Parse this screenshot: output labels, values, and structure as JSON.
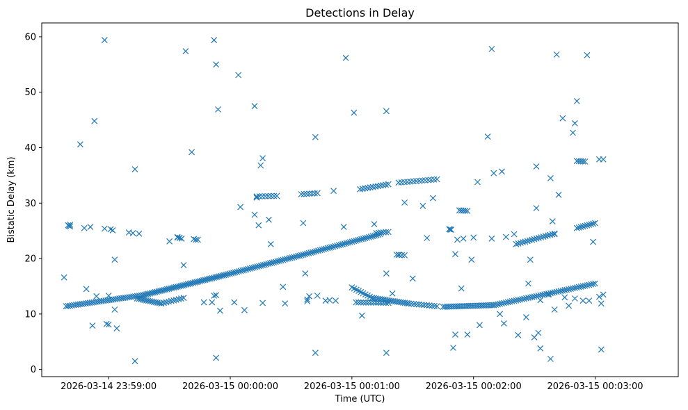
{
  "chart_data": {
    "type": "scatter",
    "title": "Detections in Delay",
    "xlabel": "Time (UTC)",
    "ylabel": "Bistatic Delay (km)",
    "x_ticks": [
      {
        "value": "2026-03-14 23:59:00",
        "label": "2026-03-14 23:59:00"
      },
      {
        "value": "2026-03-15 00:00:00",
        "label": "2026-03-15 00:00:00"
      },
      {
        "value": "2026-03-15 00:01:00",
        "label": "2026-03-15 00:01:00"
      },
      {
        "value": "2026-03-15 00:02:00",
        "label": "2026-03-15 00:02:00"
      },
      {
        "value": "2026-03-15 00:03:00",
        "label": "2026-03-15 00:03:00"
      }
    ],
    "y_ticks": [
      0,
      10,
      20,
      30,
      40,
      50,
      60
    ],
    "xlim": [
      "2026-03-14 23:58:27",
      "2026-03-15 00:03:41"
    ],
    "ylim": [
      -1.3,
      62.5
    ],
    "grid": false,
    "legend": "none",
    "marker": "x",
    "color": "#1f77b4",
    "series": [
      {
        "points": [
          [
            "2026-03-14 23:58:38",
            16.6
          ],
          [
            "2026-03-14 23:58:41",
            26.1
          ],
          [
            "2026-03-14 23:58:46",
            40.6
          ],
          [
            "2026-03-14 23:58:48",
            25.5
          ],
          [
            "2026-03-14 23:58:49",
            14.5
          ],
          [
            "2026-03-14 23:58:51",
            25.7
          ],
          [
            "2026-03-14 23:58:52",
            7.9
          ],
          [
            "2026-03-14 23:58:53",
            44.8
          ],
          [
            "2026-03-14 23:58:54",
            13.2
          ],
          [
            "2026-03-14 23:58:58",
            59.4
          ],
          [
            "2026-03-14 23:58:58",
            25.4
          ],
          [
            "2026-03-14 23:58:59",
            8.2
          ],
          [
            "2026-03-14 23:59:00",
            8.1
          ],
          [
            "2026-03-14 23:59:00",
            13.3
          ],
          [
            "2026-03-14 23:59:01",
            25.3
          ],
          [
            "2026-03-14 23:59:02",
            25.1
          ],
          [
            "2026-03-14 23:59:03",
            19.8
          ],
          [
            "2026-03-14 23:59:03",
            10.8
          ],
          [
            "2026-03-14 23:59:04",
            7.4
          ],
          [
            "2026-03-14 23:59:10",
            24.7
          ],
          [
            "2026-03-14 23:59:12",
            24.6
          ],
          [
            "2026-03-14 23:59:13",
            36.1
          ],
          [
            "2026-03-14 23:59:13",
            1.5
          ],
          [
            "2026-03-14 23:59:15",
            24.5
          ],
          [
            "2026-03-14 23:59:30",
            23.1
          ],
          [
            "2026-03-14 23:59:34",
            23.8
          ],
          [
            "2026-03-14 23:59:35",
            23.7
          ],
          [
            "2026-03-14 23:59:37",
            18.8
          ],
          [
            "2026-03-14 23:59:38",
            57.4
          ],
          [
            "2026-03-14 23:59:41",
            39.2
          ],
          [
            "2026-03-14 23:59:42",
            23.5
          ],
          [
            "2026-03-14 23:59:43",
            23.4
          ],
          [
            "2026-03-14 23:59:44",
            23.4
          ],
          [
            "2026-03-14 23:59:47",
            12.1
          ],
          [
            "2026-03-14 23:59:51",
            12.1
          ],
          [
            "2026-03-14 23:59:52",
            59.4
          ],
          [
            "2026-03-14 23:59:53",
            55.0
          ],
          [
            "2026-03-14 23:59:52",
            13.3
          ],
          [
            "2026-03-14 23:59:53",
            13.4
          ],
          [
            "2026-03-14 23:59:53",
            2.1
          ],
          [
            "2026-03-14 23:59:54",
            46.9
          ],
          [
            "2026-03-14 23:59:55",
            10.6
          ],
          [
            "2026-03-15 00:00:04",
            53.1
          ],
          [
            "2026-03-15 00:00:02",
            12.1
          ],
          [
            "2026-03-15 00:00:05",
            29.3
          ],
          [
            "2026-03-15 00:00:07",
            10.7
          ],
          [
            "2026-03-15 00:00:12",
            47.5
          ],
          [
            "2026-03-15 00:00:12",
            27.9
          ],
          [
            "2026-03-15 00:00:13",
            31.0
          ],
          [
            "2026-03-15 00:00:14",
            26.0
          ],
          [
            "2026-03-15 00:00:15",
            36.8
          ],
          [
            "2026-03-15 00:00:16",
            38.1
          ],
          [
            "2026-03-15 00:00:16",
            12.0
          ],
          [
            "2026-03-15 00:00:19",
            27.0
          ],
          [
            "2026-03-15 00:00:20",
            22.6
          ],
          [
            "2026-03-15 00:00:26",
            14.9
          ],
          [
            "2026-03-15 00:00:27",
            11.9
          ],
          [
            "2026-03-15 00:00:36",
            26.4
          ],
          [
            "2026-03-15 00:00:37",
            17.3
          ],
          [
            "2026-03-15 00:00:38",
            12.3
          ],
          [
            "2026-03-15 00:00:38",
            12.6
          ],
          [
            "2026-03-15 00:00:39",
            13.2
          ],
          [
            "2026-03-15 00:00:42",
            41.9
          ],
          [
            "2026-03-15 00:00:42",
            3.0
          ],
          [
            "2026-03-15 00:00:43",
            13.3
          ],
          [
            "2026-03-15 00:00:47",
            12.4
          ],
          [
            "2026-03-15 00:00:49",
            12.5
          ],
          [
            "2026-03-15 00:00:51",
            32.2
          ],
          [
            "2026-03-15 00:00:52",
            12.4
          ],
          [
            "2026-03-15 00:00:56",
            25.7
          ],
          [
            "2026-03-15 00:00:57",
            56.2
          ],
          [
            "2026-03-15 00:01:01",
            46.3
          ],
          [
            "2026-03-15 00:01:05",
            9.7
          ],
          [
            "2026-03-15 00:01:11",
            26.2
          ],
          [
            "2026-03-15 00:01:17",
            46.6
          ],
          [
            "2026-03-15 00:01:17",
            17.3
          ],
          [
            "2026-03-15 00:01:17",
            3.0
          ],
          [
            "2026-03-15 00:01:20",
            13.7
          ],
          [
            "2026-03-15 00:01:23",
            20.7
          ],
          [
            "2026-03-15 00:01:26",
            30.1
          ],
          [
            "2026-03-15 00:01:30",
            16.4
          ],
          [
            "2026-03-15 00:01:35",
            29.5
          ],
          [
            "2026-03-15 00:01:37",
            23.7
          ],
          [
            "2026-03-15 00:01:40",
            30.9
          ],
          [
            "2026-03-15 00:01:50",
            3.9
          ],
          [
            "2026-03-15 00:01:51",
            20.8
          ],
          [
            "2026-03-15 00:01:51",
            6.3
          ],
          [
            "2026-03-15 00:01:52",
            23.4
          ],
          [
            "2026-03-15 00:01:54",
            14.6
          ],
          [
            "2026-03-15 00:01:55",
            23.6
          ],
          [
            "2026-03-15 00:01:57",
            6.3
          ],
          [
            "2026-03-15 00:01:59",
            19.8
          ],
          [
            "2026-03-15 00:02:00",
            23.8
          ],
          [
            "2026-03-15 00:02:02",
            33.8
          ],
          [
            "2026-03-15 00:02:03",
            8.0
          ],
          [
            "2026-03-15 00:02:07",
            42.0
          ],
          [
            "2026-03-15 00:02:09",
            57.8
          ],
          [
            "2026-03-15 00:02:09",
            23.6
          ],
          [
            "2026-03-15 00:02:10",
            35.4
          ],
          [
            "2026-03-15 00:02:14",
            35.7
          ],
          [
            "2026-03-15 00:02:13",
            10.0
          ],
          [
            "2026-03-15 00:02:15",
            8.3
          ],
          [
            "2026-03-15 00:02:16",
            23.9
          ],
          [
            "2026-03-15 00:02:20",
            24.4
          ],
          [
            "2026-03-15 00:02:22",
            6.2
          ],
          [
            "2026-03-15 00:02:26",
            9.4
          ],
          [
            "2026-03-15 00:02:27",
            15.5
          ],
          [
            "2026-03-15 00:02:28",
            19.8
          ],
          [
            "2026-03-15 00:02:30",
            5.8
          ],
          [
            "2026-03-15 00:02:32",
            6.6
          ],
          [
            "2026-03-15 00:02:31",
            29.1
          ],
          [
            "2026-03-15 00:02:31",
            36.6
          ],
          [
            "2026-03-15 00:02:33",
            12.5
          ],
          [
            "2026-03-15 00:02:33",
            3.8
          ],
          [
            "2026-03-15 00:02:37",
            13.5
          ],
          [
            "2026-03-15 00:02:38",
            34.5
          ],
          [
            "2026-03-15 00:02:38",
            1.9
          ],
          [
            "2026-03-15 00:02:39",
            26.7
          ],
          [
            "2026-03-15 00:02:40",
            24.4
          ],
          [
            "2026-03-15 00:02:40",
            10.8
          ],
          [
            "2026-03-15 00:02:41",
            56.8
          ],
          [
            "2026-03-15 00:02:42",
            31.5
          ],
          [
            "2026-03-15 00:02:44",
            45.3
          ],
          [
            "2026-03-15 00:02:45",
            13.0
          ],
          [
            "2026-03-15 00:02:47",
            11.5
          ],
          [
            "2026-03-15 00:02:49",
            42.7
          ],
          [
            "2026-03-15 00:02:50",
            44.4
          ],
          [
            "2026-03-15 00:02:50",
            12.8
          ],
          [
            "2026-03-15 00:02:51",
            48.4
          ],
          [
            "2026-03-15 00:02:54",
            12.4
          ],
          [
            "2026-03-15 00:02:56",
            56.7
          ],
          [
            "2026-03-15 00:02:57",
            12.4
          ],
          [
            "2026-03-15 00:02:59",
            23.0
          ],
          [
            "2026-03-15 00:03:02",
            37.9
          ],
          [
            "2026-03-15 00:03:02",
            13.1
          ],
          [
            "2026-03-15 00:03:03",
            11.9
          ],
          [
            "2026-03-15 00:03:04",
            37.9
          ],
          [
            "2026-03-15 00:03:04",
            13.5
          ],
          [
            "2026-03-15 00:03:03",
            3.6
          ]
        ],
        "segments": [
          {
            "from": [
              "2026-03-14 23:58:39",
              11.4
            ],
            "to": [
              "2026-03-14 23:59:17",
              13.4
            ],
            "count": 40
          },
          {
            "from": [
              "2026-03-14 23:59:17",
              13.4
            ],
            "to": [
              "2026-03-14 23:59:57",
              17.0
            ],
            "count": 48
          },
          {
            "from": [
              "2026-03-14 23:59:57",
              17.0
            ],
            "to": [
              "2026-03-15 00:00:36",
              20.7
            ],
            "count": 44
          },
          {
            "from": [
              "2026-03-15 00:00:36",
              20.7
            ],
            "to": [
              "2026-03-15 00:01:14",
              24.4
            ],
            "count": 42
          },
          {
            "from": [
              "2026-03-14 23:59:14",
              12.8
            ],
            "to": [
              "2026-03-14 23:59:26",
              11.9
            ],
            "count": 14
          },
          {
            "from": [
              "2026-03-14 23:59:26",
              11.9
            ],
            "to": [
              "2026-03-14 23:59:37",
              12.9
            ],
            "count": 10
          },
          {
            "from": [
              "2026-03-14 23:58:40",
              26.0
            ],
            "to": [
              "2026-03-14 23:58:41",
              25.8
            ],
            "count": 3
          },
          {
            "from": [
              "2026-03-14 23:59:34",
              23.9
            ],
            "to": [
              "2026-03-14 23:59:36",
              23.6
            ],
            "count": 3
          },
          {
            "from": [
              "2026-03-15 00:00:13",
              31.2
            ],
            "to": [
              "2026-03-15 00:00:23",
              31.3
            ],
            "count": 8
          },
          {
            "from": [
              "2026-03-15 00:00:35",
              31.6
            ],
            "to": [
              "2026-03-15 00:00:43",
              31.8
            ],
            "count": 7
          },
          {
            "from": [
              "2026-03-15 00:01:04",
              32.5
            ],
            "to": [
              "2026-03-15 00:01:18",
              33.4
            ],
            "count": 12
          },
          {
            "from": [
              "2026-03-15 00:01:23",
              33.7
            ],
            "to": [
              "2026-03-15 00:01:42",
              34.3
            ],
            "count": 14
          },
          {
            "from": [
              "2026-03-15 00:01:00",
              14.8
            ],
            "to": [
              "2026-03-15 00:01:10",
              12.9
            ],
            "count": 10
          },
          {
            "from": [
              "2026-03-15 00:01:10",
              12.9
            ],
            "to": [
              "2026-03-15 00:01:28",
              11.9
            ],
            "count": 20
          },
          {
            "from": [
              "2026-03-15 00:01:28",
              11.9
            ],
            "to": [
              "2026-03-15 00:01:42",
              11.4
            ],
            "count": 12
          },
          {
            "from": [
              "2026-03-15 00:01:02",
              12.1
            ],
            "to": [
              "2026-03-15 00:01:18",
              12.0
            ],
            "count": 14
          },
          {
            "from": [
              "2026-03-15 00:01:12",
              24.6
            ],
            "to": [
              "2026-03-15 00:01:18",
              24.8
            ],
            "count": 6
          },
          {
            "from": [
              "2026-03-15 00:01:22",
              20.7
            ],
            "to": [
              "2026-03-15 00:01:26",
              20.6
            ],
            "count": 4
          },
          {
            "from": [
              "2026-03-15 00:01:45",
              11.3
            ],
            "to": [
              "2026-03-15 00:02:10",
              11.6
            ],
            "count": 28
          },
          {
            "from": [
              "2026-03-15 00:02:10",
              11.6
            ],
            "to": [
              "2026-03-15 00:02:45",
              14.3
            ],
            "count": 36
          },
          {
            "from": [
              "2026-03-15 00:02:45",
              14.3
            ],
            "to": [
              "2026-03-15 00:03:00",
              15.5
            ],
            "count": 16
          },
          {
            "from": [
              "2026-03-15 00:01:48",
              25.3
            ],
            "to": [
              "2026-03-15 00:01:49",
              25.2
            ],
            "count": 3
          },
          {
            "from": [
              "2026-03-15 00:01:53",
              28.7
            ],
            "to": [
              "2026-03-15 00:01:57",
              28.6
            ],
            "count": 5
          },
          {
            "from": [
              "2026-03-15 00:02:21",
              22.6
            ],
            "to": [
              "2026-03-15 00:02:40",
              24.5
            ],
            "count": 18
          },
          {
            "from": [
              "2026-03-15 00:02:51",
              37.6
            ],
            "to": [
              "2026-03-15 00:02:55",
              37.5
            ],
            "count": 5
          },
          {
            "from": [
              "2026-03-15 00:02:51",
              25.5
            ],
            "to": [
              "2026-03-15 00:03:00",
              26.4
            ],
            "count": 10
          }
        ]
      }
    ]
  }
}
